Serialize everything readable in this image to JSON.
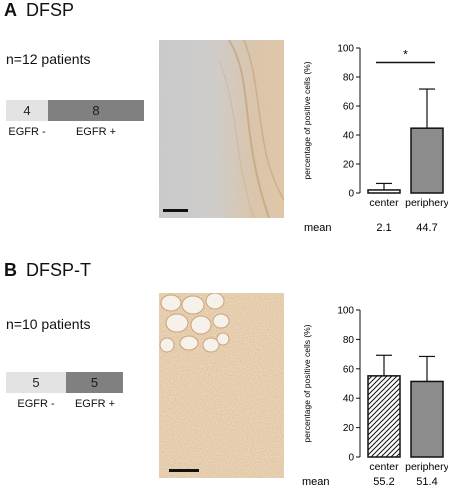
{
  "panels": [
    {
      "letter": "A",
      "title": "DFSP",
      "patients": "n=12 patients",
      "egfr_neg": {
        "count": "4",
        "label": "EGFR -",
        "color": "#e3e3e3"
      },
      "egfr_pos": {
        "count": "8",
        "label": "EGFR +",
        "color": "#808080"
      },
      "mean_label": "mean"
    },
    {
      "letter": "B",
      "title": "DFSP-T",
      "patients": "n=10 patients",
      "egfr_neg": {
        "count": "5",
        "label": "EGFR -",
        "color": "#e3e3e3"
      },
      "egfr_pos": {
        "count": "5",
        "label": "EGFR +",
        "color": "#808080"
      },
      "mean_label": "mean"
    }
  ],
  "chart_data": [
    {
      "type": "bar",
      "categories": [
        "center",
        "periphery"
      ],
      "values": [
        2.1,
        44.7
      ],
      "errors": [
        4.5,
        27
      ],
      "means": [
        "2.1",
        "44.7"
      ],
      "ylabel": "percentage of positive cells (%)",
      "ylim": [
        0,
        100
      ],
      "yticks": [
        "0",
        "20",
        "40",
        "60",
        "80",
        "100"
      ],
      "bar_styles": [
        "plain",
        "gray"
      ],
      "significance": "*",
      "colors": {
        "gray": "#8c8c8c",
        "edge": "#111111"
      }
    },
    {
      "type": "bar",
      "categories": [
        "center",
        "periphery"
      ],
      "values": [
        55.2,
        51.4
      ],
      "errors": [
        14,
        17
      ],
      "means": [
        "55.2",
        "51.4"
      ],
      "ylabel": "percentage of positive cells (%)",
      "ylim": [
        0,
        100
      ],
      "yticks": [
        "0",
        "20",
        "40",
        "60",
        "80",
        "100"
      ],
      "bar_styles": [
        "hatched",
        "gray"
      ],
      "significance": "",
      "colors": {
        "gray": "#8c8c8c",
        "edge": "#111111"
      }
    }
  ]
}
